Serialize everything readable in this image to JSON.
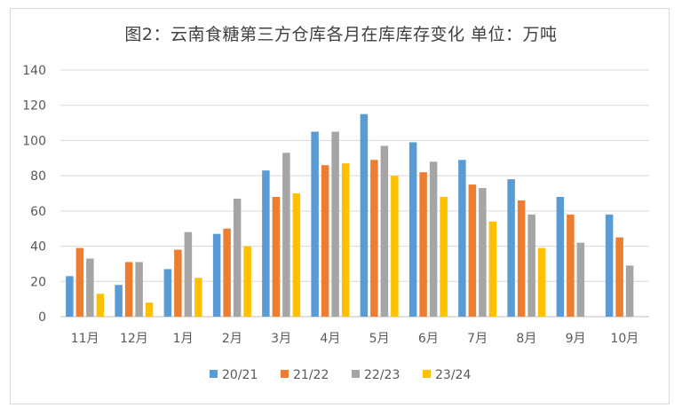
{
  "chart_data": {
    "type": "bar",
    "title": "图2：云南食糖第三方仓库各月在库库存变化  单位：万吨",
    "categories": [
      "11月",
      "12月",
      "1月",
      "2月",
      "3月",
      "4月",
      "5月",
      "6月",
      "7月",
      "8月",
      "9月",
      "10月"
    ],
    "series": [
      {
        "name": "20/21",
        "color": "#5b9bd5",
        "values": [
          23,
          18,
          27,
          47,
          83,
          105,
          115,
          99,
          89,
          78,
          68,
          58
        ]
      },
      {
        "name": "21/22",
        "color": "#ed7d31",
        "values": [
          39,
          31,
          38,
          50,
          68,
          86,
          89,
          82,
          75,
          66,
          58,
          45
        ]
      },
      {
        "name": "22/23",
        "color": "#a5a5a5",
        "values": [
          33,
          31,
          48,
          67,
          93,
          105,
          97,
          88,
          73,
          58,
          42,
          29
        ]
      },
      {
        "name": "23/24",
        "color": "#ffc000",
        "values": [
          13,
          8,
          22,
          40,
          70,
          87,
          80,
          68,
          54,
          39,
          null,
          null
        ]
      }
    ],
    "ylim": [
      0,
      140
    ],
    "yticks": [
      0,
      20,
      40,
      60,
      80,
      100,
      120,
      140
    ],
    "grid": true,
    "legend": "bottom"
  }
}
